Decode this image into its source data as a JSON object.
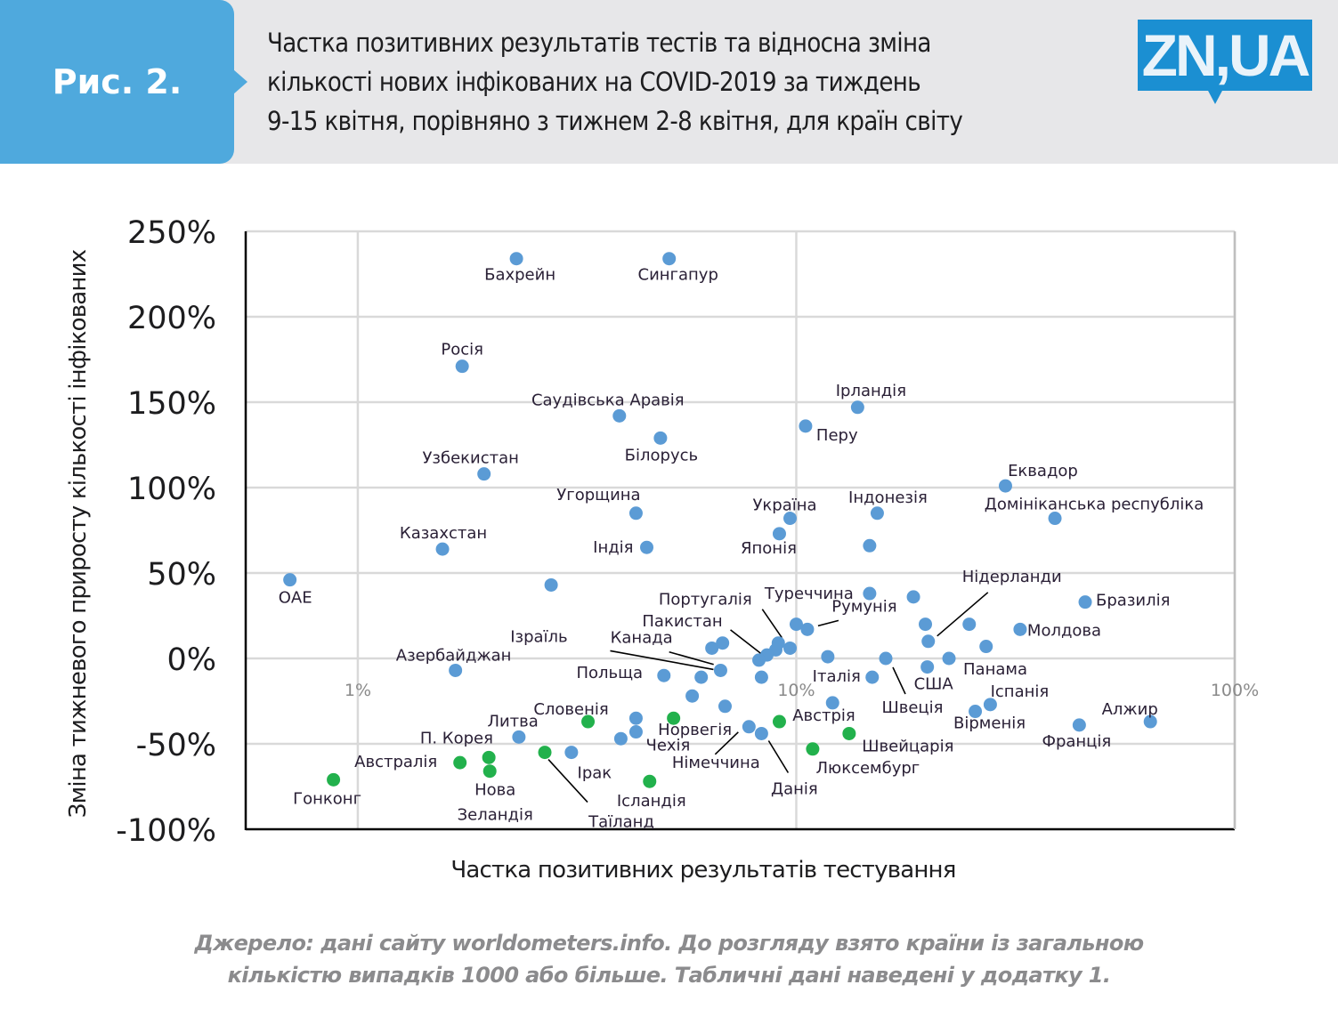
{
  "header": {
    "figure_label": "Рис. 2.",
    "title_lines": [
      "Частка позитивних результатів тестів та відносна зміна",
      "кількості нових інфікованих на COVID-2019 за тиждень",
      "9-15 квітня, порівняно з тижнем 2-8 квітня, для країн світу"
    ],
    "logo_text": "ZN,UA"
  },
  "colors": {
    "header_blue": "#4fa9dd",
    "logo_blue": "#1b8fd2",
    "banner_grey": "#e7e7e9",
    "point_blue": "#5b9bd5",
    "point_green": "#22b14c"
  },
  "footer": {
    "source_lines": [
      "Джерело: дані сайту worldometers.info. До розгляду взято країни із загальною",
      "кількістю випадків 1000 або більше. Табличні дані наведені у додатку 1."
    ]
  },
  "chart_data": {
    "type": "scatter",
    "title": "Частка позитивних результатів тестів та відносна зміна кількості нових інфікованих на COVID-2019 за тиждень 9-15 квітня, порівняно з тижнем 2-8 квітня, для країн світу",
    "xlabel": "Частка позитивних результатів тестування",
    "ylabel": "Зміна тижневого приросту кількості інфікованих",
    "x_scale": "log",
    "x_unit": "%",
    "xlim": [
      0.555,
      100
    ],
    "ylim": [
      -100,
      250
    ],
    "x_ticks": [
      1,
      10,
      100
    ],
    "x_tick_labels": [
      "1%",
      "10%",
      "100%"
    ],
    "y_ticks": [
      250,
      200,
      150,
      100,
      50,
      0,
      -50,
      -100
    ],
    "y_tick_labels": [
      "250%",
      "200%",
      "150%",
      "100%",
      "50%",
      "0%",
      "-50%",
      "-100%"
    ],
    "grid": true,
    "series": [
      {
        "name": "blue",
        "color": "#5b9bd5",
        "points": [
          {
            "label": "ОАЕ",
            "x": 0.7,
            "y": 46
          },
          {
            "label": "Бахрейн",
            "x": 2.3,
            "y": 234
          },
          {
            "label": "Сингапур",
            "x": 5.13,
            "y": 234
          },
          {
            "label": "Росія",
            "x": 1.73,
            "y": 171
          },
          {
            "label": "Саудівська Аравія",
            "x": 3.95,
            "y": 142
          },
          {
            "label": "Білорусь",
            "x": 4.9,
            "y": 129
          },
          {
            "label": "Узбекистан",
            "x": 1.94,
            "y": 108
          },
          {
            "label": "Угорщина",
            "x": 4.31,
            "y": 85
          },
          {
            "label": "Казахстан",
            "x": 1.56,
            "y": 64
          },
          {
            "label": "Індія",
            "x": 4.56,
            "y": 65
          },
          {
            "label": "",
            "x": 2.76,
            "y": 43
          },
          {
            "label": "Ірландія",
            "x": 13.8,
            "y": 147
          },
          {
            "label": "Перу",
            "x": 10.5,
            "y": 136
          },
          {
            "label": "Україна",
            "x": 9.68,
            "y": 82
          },
          {
            "label": "Японія",
            "x": 9.15,
            "y": 73
          },
          {
            "label": "Індонезія",
            "x": 15.3,
            "y": 85
          },
          {
            "label": "",
            "x": 14.7,
            "y": 66
          },
          {
            "label": "Еквадор",
            "x": 30.0,
            "y": 101
          },
          {
            "label": "Домініканська республіка",
            "x": 38.9,
            "y": 82
          },
          {
            "label": "Бразилія",
            "x": 45.6,
            "y": 33
          },
          {
            "label": "Молдова",
            "x": 32.4,
            "y": 17
          },
          {
            "label": "Туреччина",
            "x": 14.7,
            "y": 38
          },
          {
            "label": "",
            "x": 18.5,
            "y": 36
          },
          {
            "label": "",
            "x": 19.7,
            "y": 20
          },
          {
            "label": "Нідерланди",
            "x": 20.0,
            "y": 10
          },
          {
            "label": "",
            "x": 24.8,
            "y": 20
          },
          {
            "label": "",
            "x": 27.1,
            "y": 7
          },
          {
            "label": "Панама",
            "x": 22.3,
            "y": 0
          },
          {
            "label": "США",
            "x": 19.9,
            "y": -5
          },
          {
            "label": "Швеція",
            "x": 16.0,
            "y": 0
          },
          {
            "label": "",
            "x": 11.8,
            "y": 1
          },
          {
            "label": "Італія",
            "x": 14.9,
            "y": -11
          },
          {
            "label": "Румунія",
            "x": 10.6,
            "y": 17
          },
          {
            "label": "",
            "x": 10.0,
            "y": 20
          },
          {
            "label": "Португалія",
            "x": 9.1,
            "y": 9
          },
          {
            "label": "",
            "x": 9.68,
            "y": 6
          },
          {
            "label": "",
            "x": 8.98,
            "y": 5
          },
          {
            "label": "",
            "x": 8.57,
            "y": 2
          },
          {
            "label": "Пакистан",
            "x": 8.22,
            "y": -1
          },
          {
            "label": "",
            "x": 8.33,
            "y": -11
          },
          {
            "label": "Канада",
            "x": 6.79,
            "y": 9
          },
          {
            "label": "",
            "x": 6.42,
            "y": 6
          },
          {
            "label": "Ізраїль",
            "x": 6.72,
            "y": -7
          },
          {
            "label": "",
            "x": 6.07,
            "y": -11
          },
          {
            "label": "Польща",
            "x": 4.99,
            "y": -10
          },
          {
            "label": "Азербайджан",
            "x": 1.67,
            "y": -7
          },
          {
            "label": "",
            "x": 5.79,
            "y": -22
          },
          {
            "label": "",
            "x": 6.88,
            "y": -28
          },
          {
            "label": "Іспанія",
            "x": 27.7,
            "y": -27
          },
          {
            "label": "Вірменія",
            "x": 25.6,
            "y": -31
          },
          {
            "label": "Франція",
            "x": 44.2,
            "y": -39
          },
          {
            "label": "Алжир",
            "x": 64.2,
            "y": -37
          },
          {
            "label": "",
            "x": 12.1,
            "y": -26
          },
          {
            "label": "",
            "x": 4.31,
            "y": -35
          },
          {
            "label": "Чехія",
            "x": 4.31,
            "y": -43
          },
          {
            "label": "",
            "x": 3.98,
            "y": -47
          },
          {
            "label": "Німеччина",
            "x": 7.8,
            "y": -40
          },
          {
            "label": "Данія",
            "x": 8.33,
            "y": -44
          },
          {
            "label": "П. Корея",
            "x": 2.33,
            "y": -46
          },
          {
            "label": "Ірак",
            "x": 3.07,
            "y": -55
          }
        ]
      },
      {
        "name": "green",
        "color": "#22b14c",
        "points": [
          {
            "label": "Австрія",
            "x": 9.15,
            "y": -37
          },
          {
            "label": "Швейцарія",
            "x": 13.2,
            "y": -44
          },
          {
            "label": "Люксембург",
            "x": 10.9,
            "y": -53
          },
          {
            "label": "Норвегія",
            "x": 5.25,
            "y": -35
          },
          {
            "label": "Словенія",
            "x": 3.35,
            "y": -37
          },
          {
            "label": "Литва",
            "x": 1.99,
            "y": -58
          },
          {
            "label": "Нова Зеландія",
            "x": 2.0,
            "y": -66
          },
          {
            "label": "Таїланд",
            "x": 2.67,
            "y": -55
          },
          {
            "label": "Ісландія",
            "x": 4.63,
            "y": -72
          },
          {
            "label": "Австралія",
            "x": 1.71,
            "y": -61
          },
          {
            "label": "Гонконг",
            "x": 0.88,
            "y": -71
          }
        ]
      }
    ]
  }
}
